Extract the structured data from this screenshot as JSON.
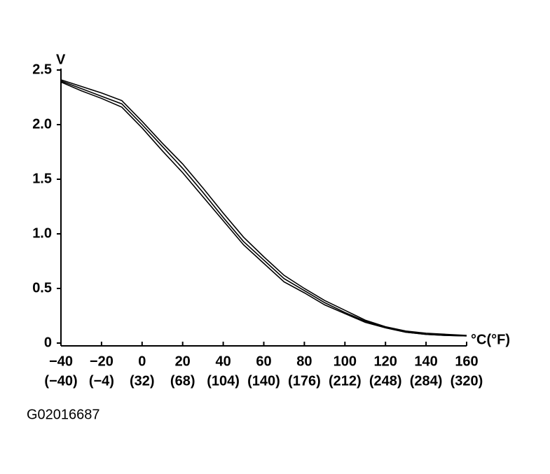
{
  "chart_data": {
    "type": "line",
    "y_label": "V",
    "x_label": "°C(°F)",
    "x": [
      -40,
      -30,
      -20,
      -10,
      0,
      10,
      20,
      30,
      40,
      50,
      60,
      70,
      80,
      90,
      100,
      110,
      120,
      130,
      140,
      150,
      160
    ],
    "series": [
      {
        "color": "#000000",
        "values": [
          2.41,
          2.35,
          2.29,
          2.22,
          2.03,
          1.83,
          1.64,
          1.42,
          1.19,
          0.97,
          0.79,
          0.62,
          0.5,
          0.39,
          0.3,
          0.21,
          0.15,
          0.11,
          0.09,
          0.08,
          0.07
        ]
      },
      {
        "color": "#000000",
        "values": [
          2.4,
          2.33,
          2.26,
          2.19,
          2.0,
          1.8,
          1.6,
          1.38,
          1.15,
          0.93,
          0.76,
          0.59,
          0.48,
          0.37,
          0.28,
          0.2,
          0.14,
          0.1,
          0.08,
          0.07,
          0.065
        ]
      },
      {
        "color": "#000000",
        "values": [
          2.39,
          2.31,
          2.24,
          2.16,
          1.97,
          1.76,
          1.56,
          1.34,
          1.12,
          0.9,
          0.73,
          0.56,
          0.46,
          0.35,
          0.27,
          0.19,
          0.14,
          0.1,
          0.08,
          0.07,
          0.065
        ]
      }
    ],
    "xlim": [
      -40,
      160
    ],
    "xticks": [
      {
        "value": -40,
        "label": "−40"
      },
      {
        "value": -20,
        "label": "−20"
      },
      0,
      20,
      40,
      60,
      80,
      100,
      120,
      140,
      160
    ],
    "fahrenheit_labels": [
      "(−40)",
      "(−4)",
      "(32)",
      "(68)",
      "(104)",
      "(140)",
      "(176)",
      "(212)",
      "(248)",
      "(284)",
      "(320)"
    ],
    "ylim": [
      0,
      2.5
    ],
    "yticks": [
      0,
      0.5,
      {
        "value": 1,
        "label": "1.0"
      },
      1.5,
      {
        "value": 2,
        "label": "2.0"
      },
      2.5
    ],
    "grid": false
  },
  "caption": "G02016687"
}
